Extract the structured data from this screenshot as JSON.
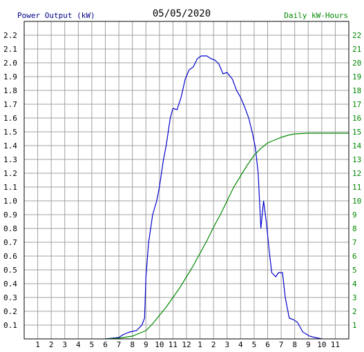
{
  "chart_data": {
    "type": "line",
    "title": "05/05/2020",
    "y_left_label": "Power Output (kW)",
    "y_right_label": "Daily kW-Hours",
    "x_ticks": [
      "1",
      "2",
      "3",
      "4",
      "5",
      "6",
      "7",
      "8",
      "9",
      "10",
      "11",
      "12",
      "1",
      "2",
      "3",
      "4",
      "5",
      "6",
      "7",
      "8",
      "9",
      "10",
      "11"
    ],
    "y_left_ticks": [
      "0.1",
      "0.2",
      "0.3",
      "0.4",
      "0.5",
      "0.6",
      "0.7",
      "0.8",
      "0.9",
      "1.0",
      "1.1",
      "1.2",
      "1.3",
      "1.4",
      "1.5",
      "1.6",
      "1.7",
      "1.8",
      "1.9",
      "2.0",
      "2.1",
      "2.2"
    ],
    "y_right_ticks": [
      "1",
      "2",
      "3",
      "4",
      "5",
      "6",
      "7",
      "8",
      "9",
      "10",
      "11",
      "12",
      "13",
      "14",
      "15",
      "16",
      "17",
      "18",
      "19",
      "20",
      "21",
      "22"
    ],
    "ylim_left": [
      0,
      2.3
    ],
    "ylim_right": [
      0,
      23
    ],
    "xlim_hours": [
      0,
      24
    ],
    "grid": true,
    "colors": {
      "power": "#0000cc",
      "energy": "#008800",
      "grid": "#a0a0a0",
      "left_axis_text": "#000088",
      "right_axis_text": "#008800"
    },
    "series": [
      {
        "name": "Power Output (kW)",
        "axis": "left",
        "points": [
          [
            6.0,
            0
          ],
          [
            7.0,
            0.01
          ],
          [
            7.3,
            0.03
          ],
          [
            7.8,
            0.05
          ],
          [
            8.3,
            0.06
          ],
          [
            8.7,
            0.1
          ],
          [
            8.9,
            0.15
          ],
          [
            9.0,
            0.45
          ],
          [
            9.2,
            0.7
          ],
          [
            9.5,
            0.9
          ],
          [
            9.8,
            1.0
          ],
          [
            10.0,
            1.1
          ],
          [
            10.3,
            1.3
          ],
          [
            10.5,
            1.4
          ],
          [
            10.8,
            1.6
          ],
          [
            11.0,
            1.67
          ],
          [
            11.3,
            1.66
          ],
          [
            11.6,
            1.75
          ],
          [
            11.9,
            1.88
          ],
          [
            12.2,
            1.95
          ],
          [
            12.5,
            1.97
          ],
          [
            12.8,
            2.03
          ],
          [
            13.1,
            2.05
          ],
          [
            13.5,
            2.05
          ],
          [
            13.8,
            2.03
          ],
          [
            14.1,
            2.02
          ],
          [
            14.4,
            1.99
          ],
          [
            14.7,
            1.92
          ],
          [
            15.0,
            1.93
          ],
          [
            15.4,
            1.88
          ],
          [
            15.7,
            1.8
          ],
          [
            16.0,
            1.75
          ],
          [
            16.3,
            1.68
          ],
          [
            16.6,
            1.6
          ],
          [
            16.9,
            1.48
          ],
          [
            17.1,
            1.38
          ],
          [
            17.3,
            1.2
          ],
          [
            17.5,
            0.8
          ],
          [
            17.7,
            1.0
          ],
          [
            17.9,
            0.85
          ],
          [
            18.1,
            0.65
          ],
          [
            18.3,
            0.48
          ],
          [
            18.6,
            0.45
          ],
          [
            18.8,
            0.48
          ],
          [
            19.1,
            0.48
          ],
          [
            19.3,
            0.3
          ],
          [
            19.6,
            0.15
          ],
          [
            19.9,
            0.14
          ],
          [
            20.2,
            0.12
          ],
          [
            20.6,
            0.05
          ],
          [
            21.1,
            0.02
          ],
          [
            21.5,
            0.01
          ],
          [
            22.0,
            0
          ]
        ]
      },
      {
        "name": "Daily kW-Hours",
        "axis": "right",
        "points": [
          [
            6.0,
            0
          ],
          [
            7.0,
            0.05
          ],
          [
            8.0,
            0.2
          ],
          [
            8.5,
            0.4
          ],
          [
            9.0,
            0.6
          ],
          [
            9.5,
            1.1
          ],
          [
            10.0,
            1.7
          ],
          [
            10.5,
            2.3
          ],
          [
            11.0,
            3.0
          ],
          [
            11.5,
            3.7
          ],
          [
            12.0,
            4.5
          ],
          [
            12.5,
            5.3
          ],
          [
            13.0,
            6.2
          ],
          [
            13.5,
            7.1
          ],
          [
            14.0,
            8.1
          ],
          [
            14.5,
            9.0
          ],
          [
            15.0,
            10.0
          ],
          [
            15.5,
            11.0
          ],
          [
            16.0,
            11.8
          ],
          [
            16.5,
            12.6
          ],
          [
            17.0,
            13.3
          ],
          [
            17.5,
            13.8
          ],
          [
            18.0,
            14.2
          ],
          [
            18.5,
            14.4
          ],
          [
            19.0,
            14.6
          ],
          [
            19.5,
            14.75
          ],
          [
            20.0,
            14.85
          ],
          [
            21.0,
            14.9
          ],
          [
            22.0,
            14.9
          ],
          [
            24.0,
            14.9
          ]
        ]
      }
    ]
  }
}
